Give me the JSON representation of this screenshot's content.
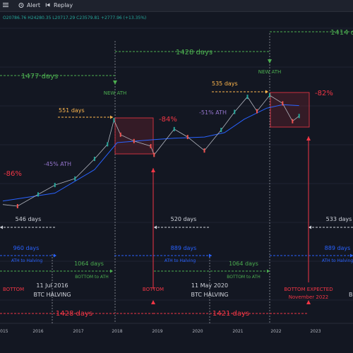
{
  "toolbar": {
    "alert_label": "Alert",
    "replay_label": "Replay"
  },
  "ohlc_readout": "O20786.76 H24280.35 L20717.29 C23579.81 +2777.96 (+13.35%)",
  "colors": {
    "background": "#131722",
    "green": "#4caf50",
    "blue": "#2962ff",
    "orange": "#ffb74d",
    "red": "#f23645",
    "purple": "#9575cd",
    "candle_up": "#26a69a",
    "candle_down": "#ef5350",
    "ma_line": "#2962ff"
  },
  "chart_data": {
    "type": "line",
    "xlabel": "",
    "ylabel": "",
    "x_tick_labels": [
      "2015",
      "2016",
      "2017",
      "2018",
      "2019",
      "2020",
      "2021",
      "2022",
      "2023"
    ],
    "y_scale": "log",
    "price_series": {
      "x": [
        "2015-01",
        "2015-06",
        "2016-01",
        "2016-06",
        "2016-12",
        "2017-06",
        "2017-10",
        "2017-12",
        "2018-02",
        "2018-06",
        "2018-11",
        "2018-12",
        "2019-06",
        "2019-10",
        "2020-03",
        "2020-08",
        "2020-12",
        "2021-04",
        "2021-07",
        "2021-11",
        "2022-03",
        "2022-06",
        "2022-08"
      ],
      "values": [
        250,
        230,
        420,
        680,
        950,
        2600,
        5500,
        19000,
        9000,
        6500,
        5000,
        3200,
        12000,
        8000,
        4000,
        11500,
        29000,
        63000,
        30000,
        68000,
        45000,
        18000,
        23500
      ]
    },
    "moving_average": {
      "x": [
        "2015-01",
        "2016-06",
        "2017-06",
        "2018-01",
        "2018-12",
        "2019-06",
        "2020-03",
        "2020-09",
        "2021-03",
        "2021-10",
        "2022-03",
        "2022-08"
      ],
      "values": [
        300,
        450,
        1500,
        6000,
        7000,
        7500,
        8000,
        10000,
        20000,
        35000,
        42000,
        40000
      ]
    },
    "annotations": {
      "new_ath": [
        {
          "text": "NEW ATH"
        },
        {
          "text": "NEW ATH"
        }
      ],
      "top_days": [
        "1477 days",
        "1428 days",
        "1414 d"
      ],
      "run_days": [
        "551 days",
        "535 days"
      ],
      "drawdowns": [
        "-86%",
        "-84%",
        "-82%"
      ],
      "mid_drawdowns": [
        "-45% ATH",
        "-51% ATH"
      ],
      "bottom_to_halving": [
        "546 days",
        "520 days",
        "533 days"
      ],
      "ath_to_halving_days": [
        "960 days",
        "889 days",
        "889 days"
      ],
      "ath_to_halving_label": [
        "ATH to Halving",
        "ATH to Halving",
        "ATH to Halving"
      ],
      "bottom_to_ath_days": [
        "1064 days",
        "1064 days"
      ],
      "bottom_to_ath_label": [
        "BOTTOM to ATH",
        "BOTTOM to ATH"
      ],
      "bottom_labels": [
        "BOTTOM",
        "BOTTOM",
        "BOTTOM EXPECTED",
        "November 2022"
      ],
      "halvings": [
        {
          "date": "11 Jul 2016",
          "label": "BTC HALVING"
        },
        {
          "date": "11 May 2020",
          "label": "BTC HALVING"
        }
      ],
      "cut_label_right": "B",
      "bottom_cycle_days": [
        "1428 days",
        "1421 days"
      ]
    }
  }
}
